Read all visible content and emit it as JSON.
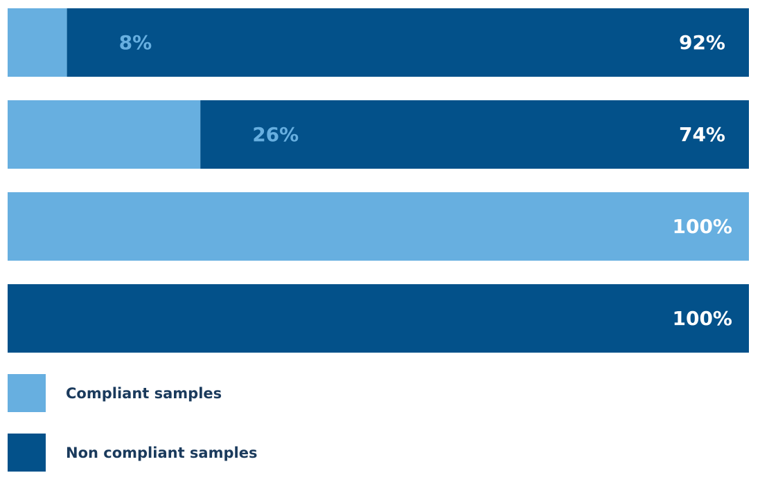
{
  "chart_data": {
    "type": "bar",
    "orientation": "horizontal",
    "stacked": true,
    "categories": [
      "",
      "",
      "",
      ""
    ],
    "series": [
      {
        "name": "Compliant samples",
        "color": "#67afe0",
        "values": [
          8,
          26,
          100,
          0
        ],
        "labels": [
          "8%",
          "26%",
          "100%",
          ""
        ]
      },
      {
        "name": "Non compliant samples",
        "color": "#03518a",
        "values": [
          92,
          74,
          0,
          100
        ],
        "labels": [
          "92%",
          "74%",
          "",
          "100%"
        ]
      }
    ],
    "xlim": [
      0,
      100
    ],
    "grid": false,
    "legend": "bottom-left",
    "label_colors": {
      "on_compliant_end": "#ffffff",
      "compliant_share": "#67afe0",
      "non_compliant_end": "#ffffff"
    }
  }
}
